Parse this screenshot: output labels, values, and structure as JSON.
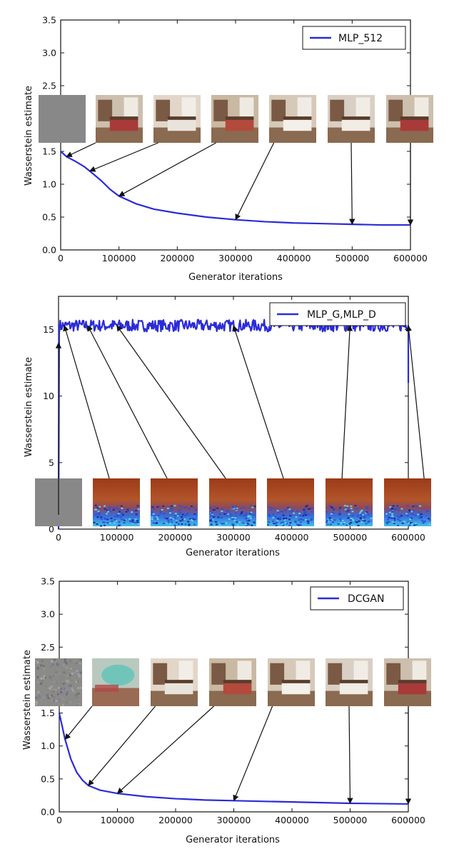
{
  "chart_data": [
    {
      "type": "line",
      "xlabel": "Generator iterations",
      "ylabel": "Wasserstein estimate",
      "xlim": [
        0,
        600000
      ],
      "ylim": [
        0,
        3.5
      ],
      "xticks": [
        "0",
        "100000",
        "200000",
        "300000",
        "400000",
        "500000",
        "600000"
      ],
      "yticks": [
        "0.0",
        "0.5",
        "1.0",
        "1.5",
        "2.0",
        "2.5",
        "3.0",
        "3.5"
      ],
      "legend_position": "top-right",
      "series": [
        {
          "name": "MLP_512",
          "color": "#2b2bd9",
          "x": [
            0,
            10000,
            25000,
            40000,
            50000,
            70000,
            85000,
            100000,
            130000,
            160000,
            200000,
            250000,
            300000,
            350000,
            400000,
            450000,
            500000,
            550000,
            600000
          ],
          "y": [
            1.5,
            1.42,
            1.35,
            1.27,
            1.2,
            1.05,
            0.92,
            0.82,
            0.7,
            0.62,
            0.56,
            0.5,
            0.46,
            0.43,
            0.41,
            0.4,
            0.39,
            0.38,
            0.38
          ]
        }
      ],
      "sample_thumbnails": [
        {
          "kind": "gray"
        },
        {
          "kind": "bedroom"
        },
        {
          "kind": "bedroom"
        },
        {
          "kind": "bedroom"
        },
        {
          "kind": "bedroom"
        },
        {
          "kind": "bedroom"
        },
        {
          "kind": "bedroom"
        }
      ],
      "arrow_targets": [
        {
          "x": 10000,
          "y": 1.42
        },
        {
          "x": 50000,
          "y": 1.2
        },
        {
          "x": 100000,
          "y": 0.82
        },
        {
          "x": 300000,
          "y": 0.46
        },
        {
          "x": 500000,
          "y": 0.39
        },
        {
          "x": 600000,
          "y": 0.38
        }
      ]
    },
    {
      "type": "line",
      "xlabel": "Generator iterations",
      "ylabel": "Wasserstein estimate",
      "xlim": [
        0,
        600000
      ],
      "ylim": [
        0,
        17.5
      ],
      "xticks": [
        "0",
        "100000",
        "200000",
        "300000",
        "400000",
        "500000",
        "600000"
      ],
      "yticks": [
        "0",
        "5",
        "10",
        "15"
      ],
      "legend_position": "top-right",
      "series": [
        {
          "name": "MLP_G,MLP_D",
          "color": "#2b2bd9",
          "x_start": 0,
          "x_end": 600000,
          "mean": 15.3,
          "noise": 0.45,
          "initial_spike": [
            0,
            15.3
          ],
          "final_drop": [
            600000,
            11.0
          ]
        }
      ],
      "sample_thumbnails": [
        {
          "kind": "gray"
        },
        {
          "kind": "noise"
        },
        {
          "kind": "noise"
        },
        {
          "kind": "noise"
        },
        {
          "kind": "noise"
        },
        {
          "kind": "noise"
        },
        {
          "kind": "noise"
        }
      ],
      "arrow_targets": [
        {
          "x": 0,
          "y": 14.0
        },
        {
          "x": 10000,
          "y": 15.3
        },
        {
          "x": 50000,
          "y": 15.3
        },
        {
          "x": 100000,
          "y": 15.3
        },
        {
          "x": 300000,
          "y": 15.3
        },
        {
          "x": 500000,
          "y": 15.3
        },
        {
          "x": 600000,
          "y": 15.3
        }
      ]
    },
    {
      "type": "line",
      "xlabel": "Generator iterations",
      "ylabel": "Wasserstein estimate",
      "xlim": [
        0,
        600000
      ],
      "ylim": [
        0,
        3.5
      ],
      "xticks": [
        "0",
        "100000",
        "200000",
        "300000",
        "400000",
        "500000",
        "600000"
      ],
      "yticks": [
        "0.0",
        "0.5",
        "1.0",
        "1.5",
        "2.0",
        "2.5",
        "3.0",
        "3.5"
      ],
      "legend_position": "top-right",
      "series": [
        {
          "name": "DCGAN",
          "color": "#2b2bd9",
          "x": [
            0,
            5000,
            10000,
            20000,
            30000,
            40000,
            50000,
            70000,
            100000,
            150000,
            200000,
            250000,
            300000,
            400000,
            500000,
            600000
          ],
          "y": [
            1.5,
            1.3,
            1.1,
            0.8,
            0.6,
            0.48,
            0.4,
            0.33,
            0.28,
            0.23,
            0.2,
            0.18,
            0.17,
            0.15,
            0.13,
            0.12
          ]
        }
      ],
      "sample_thumbnails": [
        {
          "kind": "noisy-gray"
        },
        {
          "kind": "blurry"
        },
        {
          "kind": "bedroom"
        },
        {
          "kind": "bedroom"
        },
        {
          "kind": "bedroom"
        },
        {
          "kind": "bedroom"
        },
        {
          "kind": "bedroom"
        }
      ],
      "arrow_targets": [
        {
          "x": 10000,
          "y": 1.1
        },
        {
          "x": 50000,
          "y": 0.4
        },
        {
          "x": 100000,
          "y": 0.28
        },
        {
          "x": 300000,
          "y": 0.17
        },
        {
          "x": 500000,
          "y": 0.13
        },
        {
          "x": 600000,
          "y": 0.12
        }
      ]
    }
  ]
}
